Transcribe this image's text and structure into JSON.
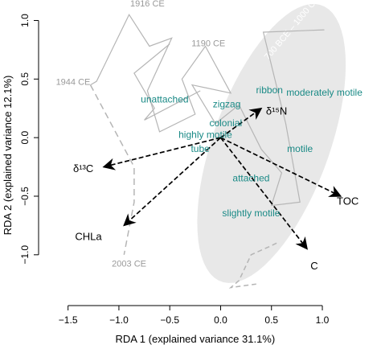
{
  "chart_data": {
    "type": "scatter",
    "subtype": "rda-biplot",
    "xlabel": "RDA 1 (explained variance 31.1%)",
    "ylabel": "RDA 2 (explained variance 12.1%)",
    "xlim": [
      -1.6,
      1.15
    ],
    "ylim": [
      -1.42,
      1.12
    ],
    "x_ticks": [
      -1.5,
      -1.0,
      -0.5,
      0.0,
      0.5,
      1.0
    ],
    "x_tick_labels": [
      "−1.5",
      "−1.0",
      "−0.5",
      "0.0",
      "0.5",
      "1.0"
    ],
    "y_ticks": [
      -1.0,
      -0.5,
      0.0,
      0.5,
      1.0
    ],
    "y_tick_labels": [
      "−1.0",
      "−0.5",
      "0.0",
      "0.5",
      "1.0"
    ],
    "grid": false,
    "colors": {
      "trait_text": "#1a8a86",
      "trajectory": "#b5b5b5",
      "time_label": "#9a9a9a",
      "ellipse_fill": "#e8e8e8",
      "arrows": "#000000"
    },
    "ellipse": {
      "label": "700 BCE – 1000 CE",
      "center": [
        0.5,
        -0.05
      ],
      "semi_axis_major": 1.28,
      "semi_axis_minor": 0.56,
      "angle_deg": 66
    },
    "trajectory_solid": [
      [
        1.02,
        0.92
      ],
      [
        0.42,
        0.9
      ],
      [
        0.64,
        0.12
      ],
      [
        0.78,
        -0.55
      ],
      [
        0.5,
        -0.58
      ],
      [
        0.6,
        -0.3
      ],
      [
        0.4,
        -0.1
      ],
      [
        0.18,
        0.28
      ],
      [
        -0.05,
        0.12
      ],
      [
        -0.28,
        0.45
      ],
      [
        0.1,
        0.38
      ],
      [
        -0.15,
        0.78
      ],
      [
        -0.38,
        0.5
      ],
      [
        -0.25,
        0.2
      ],
      [
        -0.6,
        0.05
      ],
      [
        -0.72,
        0.4
      ],
      [
        -0.48,
        0.85
      ],
      [
        -0.7,
        0.78
      ],
      [
        -0.9,
        1.05
      ],
      [
        -1.22,
        0.48
      ],
      [
        -1.28,
        0.45
      ],
      [
        -1.28,
        0.45
      ]
    ],
    "trajectory_solid_b": [
      [
        -0.5,
        0.8
      ],
      [
        -0.85,
        0.55
      ],
      [
        -0.65,
        0.25
      ],
      [
        -0.75,
        0.15
      ],
      [
        -0.2,
        0.4
      ]
    ],
    "trajectory_dashed": [
      [
        -1.28,
        0.45
      ],
      [
        -0.85,
        -0.25
      ],
      [
        -0.85,
        -0.55
      ],
      [
        -0.95,
        -1.0
      ]
    ],
    "trajectory_tail": [
      [
        0.55,
        -0.9
      ],
      [
        0.48,
        -0.93
      ],
      [
        0.3,
        -1.0
      ],
      [
        0.18,
        -1.22
      ],
      [
        0.1,
        -1.28
      ],
      [
        0.35,
        -1.25
      ]
    ],
    "traits": [
      {
        "label": "ribbon",
        "x": 0.48,
        "y": 0.4
      },
      {
        "label": "moderately motile",
        "x": 1.02,
        "y": 0.38
      },
      {
        "label": "unattached",
        "x": -0.55,
        "y": 0.32
      },
      {
        "label": "zigzag",
        "x": 0.06,
        "y": 0.28
      },
      {
        "label": "colonial",
        "x": 0.05,
        "y": 0.12
      },
      {
        "label": "highly motile",
        "x": -0.15,
        "y": 0.02
      },
      {
        "label": "tube",
        "x": -0.2,
        "y": -0.1
      },
      {
        "label": "motile",
        "x": 0.78,
        "y": -0.1
      },
      {
        "label": "attached",
        "x": 0.3,
        "y": -0.35
      },
      {
        "label": "slightly motile",
        "x": 0.3,
        "y": -0.65
      }
    ],
    "time_labels": [
      {
        "label": "1916 CE",
        "x": -0.72,
        "y": 1.12
      },
      {
        "label": "1190 CE",
        "x": -0.12,
        "y": 0.78
      },
      {
        "label": "1944 CE",
        "x": -1.45,
        "y": 0.45
      },
      {
        "label": "2003 CE",
        "x": -0.9,
        "y": -1.1
      }
    ],
    "arrows": [
      {
        "label": "δ¹⁵N",
        "x": 0.4,
        "y": 0.25,
        "label_x": 0.55,
        "label_y": 0.22
      },
      {
        "label": "δ¹³C",
        "x": -1.15,
        "y": -0.25,
        "label_x": -1.35,
        "label_y": -0.27
      },
      {
        "label": "CHLa",
        "x": -0.95,
        "y": -0.75,
        "label_x": -1.3,
        "label_y": -0.85
      },
      {
        "label": "TOC",
        "x": 1.18,
        "y": -0.5,
        "label_x": 1.25,
        "label_y": -0.55
      },
      {
        "label": "C",
        "x": 0.85,
        "y": -0.95,
        "label_x": 0.92,
        "label_y": -1.1
      }
    ],
    "origin": [
      0.0,
      0.0
    ]
  }
}
